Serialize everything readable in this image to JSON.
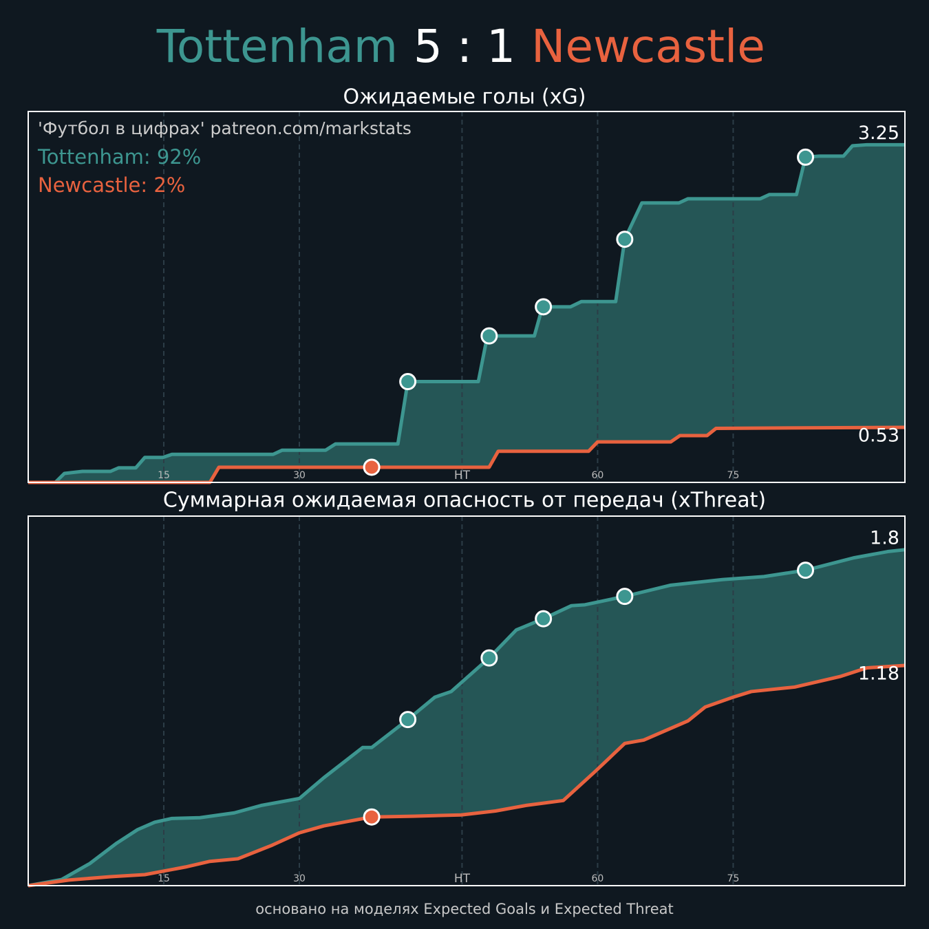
{
  "title": {
    "home": "Tottenham",
    "score": "5 : 1",
    "away": "Newcastle"
  },
  "footer": "основано на моделях Expected Goals и Expected Threat",
  "chart_data": [
    {
      "type": "line",
      "title": "Ожидаемые голы (xG)",
      "annotations": [
        "'Футбол в цифрах' patreon.com/markstats",
        "Tottenham: 92%",
        "Newcastle: 2%"
      ],
      "xlim": [
        0,
        97
      ],
      "ylim": [
        0,
        3.57
      ],
      "xticks": [
        15,
        30,
        {
          "value": 48,
          "label": "HT"
        },
        {
          "value": 63,
          "label": "60"
        },
        {
          "value": 78,
          "label": "75"
        }
      ],
      "grid": true,
      "series": [
        {
          "name": "Tottenham",
          "color": "#3d9690",
          "goals": [
            42,
            51,
            57,
            66,
            86
          ],
          "x": [
            0,
            3,
            4,
            6,
            9.1,
            10,
            11.9,
            12.9,
            14.9,
            15.9,
            27.1,
            28.1,
            32.9,
            34,
            40.9,
            42,
            49.8,
            50.8,
            56,
            56.9,
            60,
            61.2,
            65,
            66,
            67.9,
            72,
            73,
            81,
            82,
            85,
            86,
            87.5,
            90.2,
            91.2,
            92.8,
            97
          ],
          "values": [
            0,
            0,
            0.086,
            0.106,
            0.106,
            0.14,
            0.14,
            0.24,
            0.24,
            0.27,
            0.27,
            0.31,
            0.31,
            0.37,
            0.37,
            0.97,
            0.97,
            1.41,
            1.41,
            1.69,
            1.69,
            1.74,
            1.74,
            2.34,
            2.69,
            2.69,
            2.73,
            2.73,
            2.77,
            2.77,
            3.13,
            3.14,
            3.14,
            3.24,
            3.25,
            3.25
          ]
        },
        {
          "name": "Newcastle",
          "color": "#e8623f",
          "goals": [
            38
          ],
          "x": [
            0,
            20.1,
            21.1,
            51,
            52,
            62,
            63,
            71.1,
            72.1,
            75.1,
            76.1,
            97
          ],
          "values": [
            0,
            0,
            0.146,
            0.146,
            0.3,
            0.3,
            0.39,
            0.39,
            0.45,
            0.45,
            0.52,
            0.53
          ]
        }
      ]
    },
    {
      "type": "line",
      "title": "Суммарная ожидаемая опасность от передач (xThreat)",
      "xlim": [
        0,
        97
      ],
      "ylim": [
        0,
        1.98
      ],
      "xticks": [
        15,
        30,
        {
          "value": 48,
          "label": "HT"
        },
        {
          "value": 63,
          "label": "60"
        },
        {
          "value": 78,
          "label": "75"
        }
      ],
      "grid": true,
      "series": [
        {
          "name": "Tottenham",
          "color": "#3d9690",
          "goals": [
            42,
            51,
            57,
            66,
            86
          ],
          "x": [
            0,
            3.7,
            6.8,
            9.8,
            12.1,
            14,
            15.9,
            19,
            22.8,
            25.8,
            30,
            32.7,
            37,
            38,
            42,
            45,
            46.8,
            51,
            54,
            57,
            60.1,
            61.6,
            66,
            71.1,
            76.8,
            81.4,
            86,
            91.3,
            95.1,
            97
          ],
          "values": [
            0,
            0.033,
            0.118,
            0.228,
            0.3,
            0.34,
            0.36,
            0.364,
            0.39,
            0.43,
            0.467,
            0.578,
            0.74,
            0.74,
            0.89,
            1.01,
            1.04,
            1.22,
            1.37,
            1.43,
            1.5,
            1.505,
            1.55,
            1.61,
            1.64,
            1.656,
            1.69,
            1.756,
            1.79,
            1.8
          ]
        },
        {
          "name": "Newcastle",
          "color": "#e8623f",
          "goals": [
            38
          ],
          "x": [
            0,
            4.5,
            9.1,
            12.9,
            17.4,
            20.1,
            23.2,
            27,
            30,
            32.7,
            38,
            42.6,
            47.9,
            51.7,
            55.1,
            59.2,
            62.8,
            66,
            68.1,
            73,
            74.9,
            78,
            80,
            84.8,
            89.8,
            92.8,
            97
          ],
          "values": [
            0,
            0.03,
            0.048,
            0.059,
            0.1,
            0.13,
            0.144,
            0.217,
            0.283,
            0.32,
            0.368,
            0.372,
            0.379,
            0.4,
            0.43,
            0.456,
            0.615,
            0.762,
            0.78,
            0.883,
            0.957,
            1.01,
            1.04,
            1.064,
            1.12,
            1.167,
            1.18
          ]
        }
      ]
    }
  ]
}
